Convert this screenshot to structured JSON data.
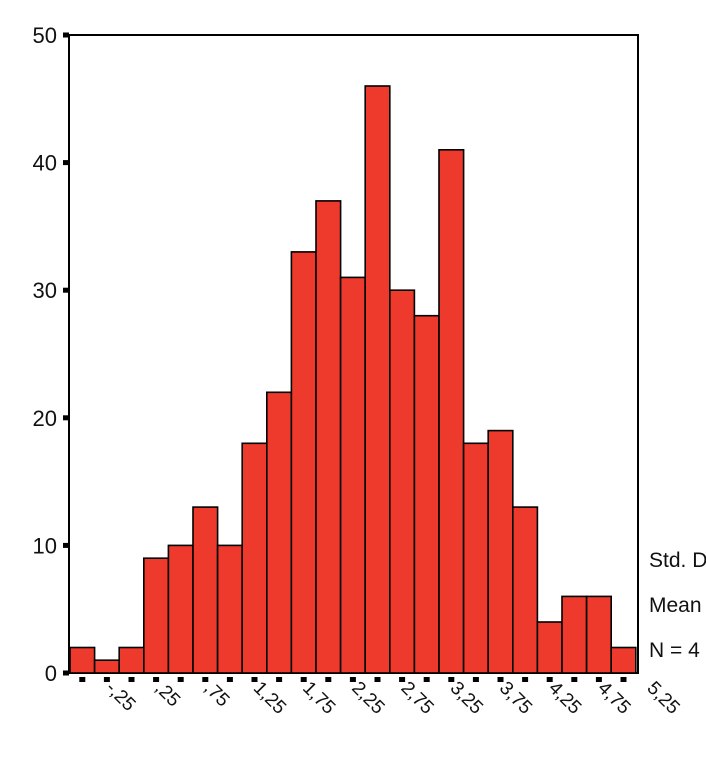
{
  "chart_data": {
    "type": "bar",
    "title": "",
    "xlabel": "",
    "ylabel": "",
    "ylim": [
      0,
      50
    ],
    "yticks": [
      0,
      10,
      20,
      30,
      40,
      50
    ],
    "bin_width": 0.25,
    "x_start": -0.5,
    "values": [
      2,
      1,
      2,
      9,
      10,
      13,
      10,
      18,
      22,
      33,
      37,
      31,
      46,
      30,
      28,
      41,
      18,
      19,
      13,
      4,
      6,
      6,
      2
    ],
    "xtick_labels": [
      "-,25",
      ",25",
      ",75",
      "1,25",
      "1,75",
      "2,25",
      "2,75",
      "3,25",
      "3,75",
      "4,25",
      "4,75",
      "5,25"
    ],
    "bar_color": "#ee3a2c",
    "grid": false,
    "stats": [
      "Std. D",
      "Mean",
      "N = 4"
    ]
  }
}
